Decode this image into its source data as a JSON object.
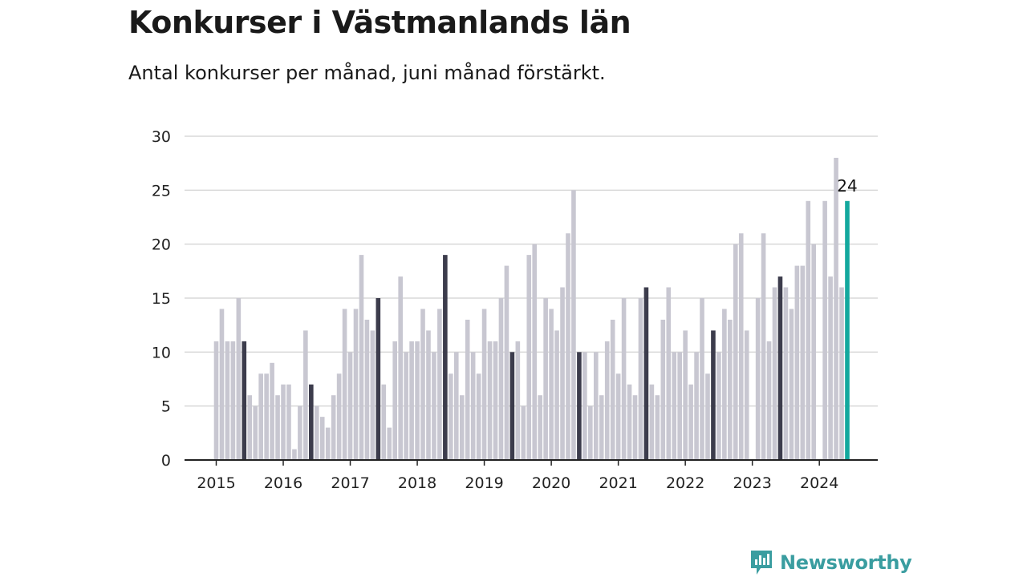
{
  "header": {
    "title": "Konkurser i Västmanlands län",
    "subtitle": "Antal konkurser per månad, juni månad förstärkt."
  },
  "brand": {
    "name": "Newsworthy",
    "icon": "newsworthy-logo-icon",
    "color": "#3a9da0"
  },
  "colors": {
    "default_bar": "#c8c7d1",
    "june_bar": "#3c3c4c",
    "latest_bar": "#13a89e",
    "grid": "#d8d8d8",
    "axis": "#222222"
  },
  "chart_data": {
    "type": "bar",
    "title": "Konkurser i Västmanlands län",
    "subtitle": "Antal konkurser per månad, juni månad förstärkt.",
    "xlabel": "",
    "ylabel": "",
    "ylim": [
      0,
      30
    ],
    "yticks": [
      0,
      5,
      10,
      15,
      20,
      25,
      30
    ],
    "year_labels": [
      "2015",
      "2016",
      "2017",
      "2018",
      "2019",
      "2020",
      "2021",
      "2022",
      "2023",
      "2024"
    ],
    "start": "2015-01",
    "end": "2024-06",
    "grid": true,
    "highlight": "June of each year",
    "latest_label": "24",
    "series": [
      {
        "values": [
          11,
          14,
          11,
          11,
          15,
          11,
          6,
          5,
          8,
          8,
          9,
          6,
          7,
          7,
          1,
          5,
          12,
          7,
          5,
          4,
          3,
          6,
          8,
          14,
          10,
          14,
          19,
          13,
          12,
          15,
          7,
          3,
          11,
          17,
          10,
          11,
          11,
          14,
          12,
          10,
          14,
          19,
          8,
          10,
          6,
          13,
          10,
          8,
          14,
          11,
          11,
          15,
          18,
          10,
          11,
          5,
          19,
          20,
          6,
          15,
          14,
          12,
          16,
          21,
          25,
          10,
          10,
          5,
          10,
          6,
          11,
          13,
          8,
          15,
          7,
          6,
          15,
          16,
          7,
          6,
          13,
          16,
          10,
          10,
          12,
          7,
          10,
          15,
          8,
          12,
          10,
          14,
          13,
          20,
          21,
          12,
          0,
          15,
          21,
          11,
          16,
          17,
          16,
          14,
          18,
          18,
          24,
          20,
          0,
          24,
          17,
          28,
          16,
          24
        ]
      }
    ]
  }
}
